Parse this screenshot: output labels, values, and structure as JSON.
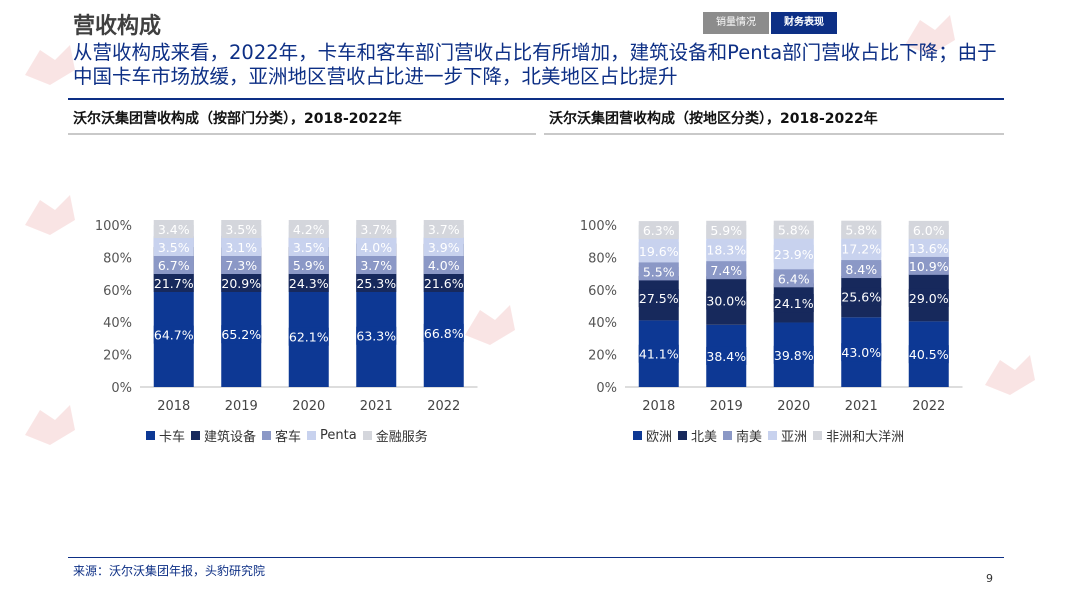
{
  "header": {
    "title": "营收构成",
    "tabs": [
      "销量情况",
      "财务表现"
    ],
    "subtitle": "从营收构成来看，2022年，卡车和客车部门营收占比有所增加，建筑设备和Penta部门营收占比下降；由于中国卡车市场放缓，亚洲地区营收占比进一步下降，北美地区占比提升"
  },
  "colors": {
    "brand": "#0d2f85",
    "series_dept": [
      "#0d3894",
      "#17295c",
      "#8b98c6",
      "#c8d2ee",
      "#d4d6dc"
    ],
    "series_region": [
      "#0d3894",
      "#17295c",
      "#8b98c6",
      "#c8d2ee",
      "#d4d6dc"
    ]
  },
  "chart_data": [
    {
      "type": "bar",
      "stacked": true,
      "title": "沃尔沃集团营收构成（按部门分类），2018-2022年",
      "categories": [
        "2018",
        "2019",
        "2020",
        "2021",
        "2022"
      ],
      "ylim": [
        0,
        100
      ],
      "yticks": [
        "0%",
        "20%",
        "40%",
        "60%",
        "80%",
        "100%"
      ],
      "legend_position": "bottom",
      "series": [
        {
          "name": "卡车",
          "values": [
            64.7,
            65.2,
            62.1,
            63.3,
            66.8
          ],
          "labels": [
            "64.7%",
            "65.2%",
            "62.1%",
            "63.3%",
            "66.8%"
          ]
        },
        {
          "name": "建筑设备",
          "values": [
            21.7,
            20.9,
            24.3,
            25.3,
            21.6
          ],
          "labels": [
            "21.7%",
            "20.9%",
            "24.3%",
            "25.3%",
            "21.6%"
          ]
        },
        {
          "name": "客车",
          "values": [
            6.7,
            7.3,
            5.9,
            3.7,
            4.0
          ],
          "labels": [
            "6.7%",
            "7.3%",
            "5.9%",
            "3.7%",
            "4.0%"
          ]
        },
        {
          "name": "Penta",
          "values": [
            3.5,
            3.1,
            3.5,
            4.0,
            3.9
          ],
          "labels": [
            "3.5%",
            "3.1%",
            "3.5%",
            "4.0%",
            "3.9%"
          ]
        },
        {
          "name": "金融服务",
          "values": [
            3.4,
            3.5,
            4.2,
            3.7,
            3.7
          ],
          "labels": [
            "3.4%",
            "3.5%",
            "4.2%",
            "3.7%",
            "3.7%"
          ]
        }
      ]
    },
    {
      "type": "bar",
      "stacked": true,
      "title": "沃尔沃集团营收构成（按地区分类），2018-2022年",
      "categories": [
        "2018",
        "2019",
        "2020",
        "2021",
        "2022"
      ],
      "ylim": [
        0,
        100
      ],
      "yticks": [
        "0%",
        "20%",
        "40%",
        "60%",
        "80%",
        "100%"
      ],
      "legend_position": "bottom",
      "series": [
        {
          "name": "欧洲",
          "values": [
            41.1,
            38.4,
            39.8,
            43.0,
            40.5
          ],
          "labels": [
            "41.1%",
            "38.4%",
            "39.8%",
            "43.0%",
            "40.5%"
          ]
        },
        {
          "name": "北美",
          "values": [
            27.5,
            30.0,
            24.1,
            25.6,
            29.0
          ],
          "labels": [
            "27.5%",
            "30.0%",
            "24.1%",
            "25.6%",
            "29.0%"
          ]
        },
        {
          "name": "南美",
          "values": [
            5.5,
            7.4,
            6.4,
            8.4,
            10.9
          ],
          "labels": [
            "5.5%",
            "7.4%",
            "6.4%",
            "8.4%",
            "10.9%"
          ]
        },
        {
          "name": "亚洲",
          "values": [
            19.6,
            18.3,
            23.9,
            17.2,
            13.6
          ],
          "labels": [
            "19.6%",
            "18.3%",
            "23.9%",
            "17.2%",
            "13.6%"
          ]
        },
        {
          "name": "非洲和大洋洲",
          "values": [
            6.3,
            5.9,
            5.8,
            5.8,
            6.0
          ],
          "labels": [
            "6.3%",
            "5.9%",
            "5.8%",
            "5.8%",
            "6.0%"
          ]
        }
      ]
    }
  ],
  "footer": {
    "source": "来源：沃尔沃集团年报，头豹研究院",
    "page_number": "9"
  }
}
